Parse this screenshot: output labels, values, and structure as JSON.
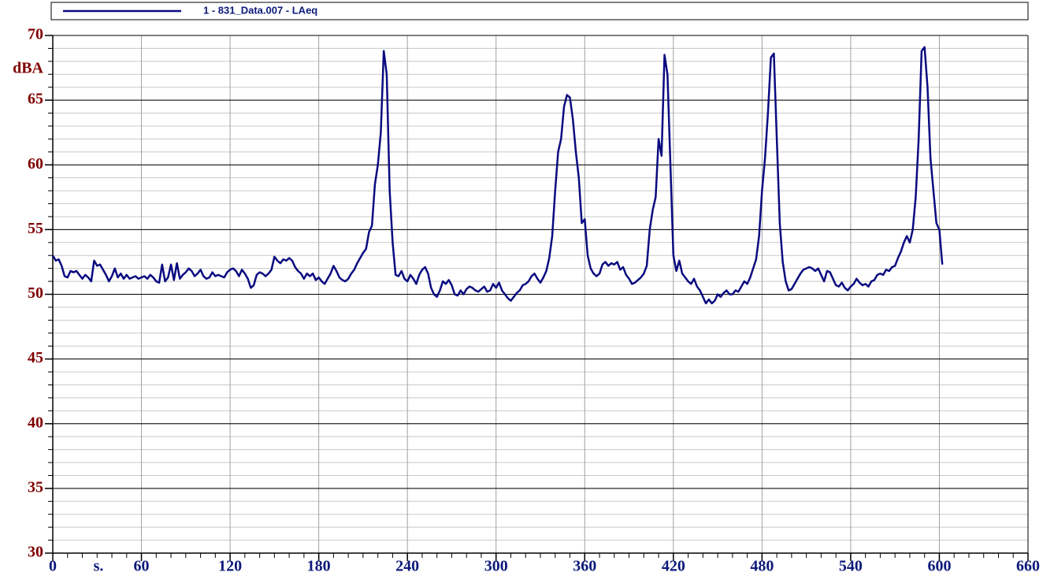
{
  "chart_data": {
    "type": "line",
    "legend_position": "top",
    "x_label": "s.",
    "y_label": "dBA",
    "xlim": [
      0,
      660
    ],
    "ylim": [
      30,
      70
    ],
    "xticks": [
      0,
      60,
      120,
      180,
      240,
      300,
      360,
      420,
      480,
      540,
      600,
      660
    ],
    "yticks": [
      30,
      35,
      40,
      45,
      50,
      55,
      60,
      65,
      70
    ],
    "xminorticks": [
      0,
      10,
      20,
      30,
      40,
      50,
      60,
      70,
      80,
      90,
      100,
      110,
      120,
      130,
      140,
      150,
      160,
      170,
      180,
      190,
      200,
      210,
      220,
      230,
      240,
      250,
      260,
      270,
      280,
      290,
      300,
      310,
      320,
      330,
      340,
      350,
      360,
      370,
      380,
      390,
      400,
      410,
      420,
      430,
      440,
      450,
      460,
      470,
      480,
      490,
      500,
      510,
      520,
      530,
      540,
      550,
      560,
      570,
      580,
      590,
      600,
      610,
      620,
      630,
      640,
      650,
      660
    ],
    "yminorticks": [
      30,
      31,
      32,
      33,
      34,
      35,
      36,
      37,
      38,
      39,
      40,
      41,
      42,
      43,
      44,
      45,
      46,
      47,
      48,
      49,
      50,
      51,
      52,
      53,
      54,
      55,
      56,
      57,
      58,
      59,
      60,
      61,
      62,
      63,
      64,
      65,
      66,
      67,
      68,
      69,
      70
    ],
    "grid": true,
    "x": [
      0,
      2,
      4,
      6,
      8,
      10,
      12,
      14,
      16,
      18,
      20,
      22,
      24,
      26,
      28,
      30,
      32,
      34,
      36,
      38,
      40,
      42,
      44,
      46,
      48,
      50,
      52,
      54,
      56,
      58,
      60,
      62,
      64,
      66,
      68,
      70,
      72,
      74,
      76,
      78,
      80,
      82,
      84,
      86,
      88,
      90,
      92,
      94,
      96,
      98,
      100,
      102,
      104,
      106,
      108,
      110,
      112,
      114,
      116,
      118,
      120,
      122,
      124,
      126,
      128,
      130,
      132,
      134,
      136,
      138,
      140,
      142,
      144,
      146,
      148,
      150,
      152,
      154,
      156,
      158,
      160,
      162,
      164,
      166,
      168,
      170,
      172,
      174,
      176,
      178,
      180,
      182,
      184,
      186,
      188,
      190,
      192,
      194,
      196,
      198,
      200,
      202,
      204,
      206,
      208,
      210,
      212,
      214,
      216,
      218,
      220,
      222,
      224,
      226,
      228,
      230,
      232,
      234,
      236,
      238,
      240,
      242,
      244,
      246,
      248,
      250,
      252,
      254,
      256,
      258,
      260,
      262,
      264,
      266,
      268,
      270,
      272,
      274,
      276,
      278,
      280,
      282,
      284,
      286,
      288,
      290,
      292,
      294,
      296,
      298,
      300,
      302,
      304,
      306,
      308,
      310,
      312,
      314,
      316,
      318,
      320,
      322,
      324,
      326,
      328,
      330,
      332,
      334,
      336,
      338,
      340,
      342,
      344,
      346,
      348,
      350,
      352,
      354,
      356,
      358,
      360,
      362,
      364,
      366,
      368,
      370,
      372,
      374,
      376,
      378,
      380,
      382,
      384,
      386,
      388,
      390,
      392,
      394,
      396,
      398,
      400,
      402,
      404,
      406,
      408,
      410,
      412,
      414,
      416,
      418,
      420,
      422,
      424,
      426,
      428,
      430,
      432,
      434,
      436,
      438,
      440,
      442,
      444,
      446,
      448,
      450,
      452,
      454,
      456,
      458,
      460,
      462,
      464,
      466,
      468,
      470,
      472,
      474,
      476,
      478,
      480,
      482,
      484,
      486,
      488,
      490,
      492,
      494,
      496,
      498,
      500,
      502,
      504,
      506,
      508,
      510,
      512,
      514,
      516,
      518,
      520,
      522,
      524,
      526,
      528,
      530,
      532,
      534,
      536,
      538,
      540,
      542,
      544,
      546,
      548,
      550,
      552,
      554,
      556,
      558,
      560,
      562,
      564,
      566,
      568,
      570,
      572,
      574,
      576,
      578,
      580,
      582,
      584,
      586,
      588,
      590,
      592,
      594,
      596,
      598,
      600,
      602
    ],
    "series": [
      {
        "name": "1 - 831_Data.007 - LAeq",
        "color": "#0a0a80",
        "values": [
          53.0,
          52.6,
          52.7,
          52.2,
          51.4,
          51.3,
          51.8,
          51.7,
          51.8,
          51.5,
          51.2,
          51.5,
          51.3,
          51.0,
          52.6,
          52.2,
          52.3,
          51.9,
          51.5,
          51.0,
          51.4,
          52.0,
          51.3,
          51.6,
          51.2,
          51.5,
          51.2,
          51.3,
          51.4,
          51.2,
          51.3,
          51.4,
          51.2,
          51.5,
          51.3,
          51.0,
          50.9,
          52.3,
          51.0,
          51.3,
          52.3,
          51.1,
          52.4,
          51.2,
          51.5,
          51.7,
          52.0,
          51.8,
          51.4,
          51.6,
          51.9,
          51.4,
          51.2,
          51.3,
          51.7,
          51.4,
          51.5,
          51.4,
          51.3,
          51.7,
          51.9,
          52.0,
          51.8,
          51.4,
          51.9,
          51.6,
          51.2,
          50.5,
          50.7,
          51.5,
          51.7,
          51.6,
          51.4,
          51.6,
          51.9,
          52.9,
          52.6,
          52.4,
          52.7,
          52.6,
          52.8,
          52.6,
          52.1,
          51.8,
          51.6,
          51.2,
          51.6,
          51.4,
          51.6,
          51.1,
          51.3,
          51.0,
          50.8,
          51.2,
          51.6,
          52.2,
          51.8,
          51.3,
          51.1,
          51.0,
          51.2,
          51.6,
          51.9,
          52.4,
          52.8,
          53.2,
          53.5,
          54.8,
          55.3,
          58.5,
          60.0,
          62.5,
          68.8,
          67.0,
          58.0,
          54.0,
          51.5,
          51.4,
          51.8,
          51.2,
          51.0,
          51.5,
          51.2,
          50.8,
          51.5,
          51.9,
          52.1,
          51.6,
          50.5,
          50.0,
          49.8,
          50.3,
          51.0,
          50.8,
          51.1,
          50.7,
          50.0,
          49.9,
          50.3,
          50.0,
          50.4,
          50.6,
          50.5,
          50.3,
          50.2,
          50.4,
          50.6,
          50.2,
          50.3,
          50.8,
          50.5,
          50.9,
          50.3,
          50.0,
          49.7,
          49.5,
          49.8,
          50.1,
          50.3,
          50.7,
          50.8,
          51.0,
          51.4,
          51.6,
          51.2,
          50.9,
          51.3,
          51.8,
          52.8,
          54.5,
          58.0,
          61.0,
          62.0,
          64.5,
          65.4,
          65.2,
          63.5,
          61.0,
          59.0,
          55.5,
          55.8,
          53.0,
          52.0,
          51.6,
          51.4,
          51.6,
          52.3,
          52.5,
          52.2,
          52.4,
          52.3,
          52.5,
          51.9,
          52.1,
          51.5,
          51.2,
          50.8,
          50.9,
          51.1,
          51.3,
          51.6,
          52.2,
          55.0,
          56.5,
          57.5,
          62.0,
          60.7,
          68.5,
          67.0,
          60.0,
          53.0,
          51.8,
          52.6,
          51.6,
          51.3,
          51.0,
          50.8,
          51.2,
          50.6,
          50.3,
          49.8,
          49.3,
          49.6,
          49.3,
          49.5,
          50.0,
          49.8,
          50.1,
          50.3,
          50.0,
          50.0,
          50.3,
          50.2,
          50.6,
          51.0,
          50.8,
          51.3,
          52.0,
          52.7,
          54.5,
          58.0,
          60.5,
          64.0,
          68.3,
          68.6,
          62.0,
          55.5,
          52.5,
          51.0,
          50.3,
          50.4,
          50.8,
          51.2,
          51.6,
          51.9,
          52.0,
          52.1,
          52.0,
          51.8,
          52.0,
          51.5,
          51.0,
          51.8,
          51.7,
          51.2,
          50.7,
          50.6,
          50.9,
          50.5,
          50.3,
          50.6,
          50.8,
          51.2,
          50.9,
          50.7,
          50.8,
          50.6,
          51.0,
          51.1,
          51.5,
          51.6,
          51.5,
          51.9,
          51.8,
          52.1,
          52.2,
          52.8,
          53.3,
          54.0,
          54.5,
          54.0,
          55.0,
          57.5,
          62.0,
          68.8,
          69.1,
          66.0,
          60.5,
          58.0,
          55.5,
          55.0,
          52.3
        ]
      }
    ]
  }
}
